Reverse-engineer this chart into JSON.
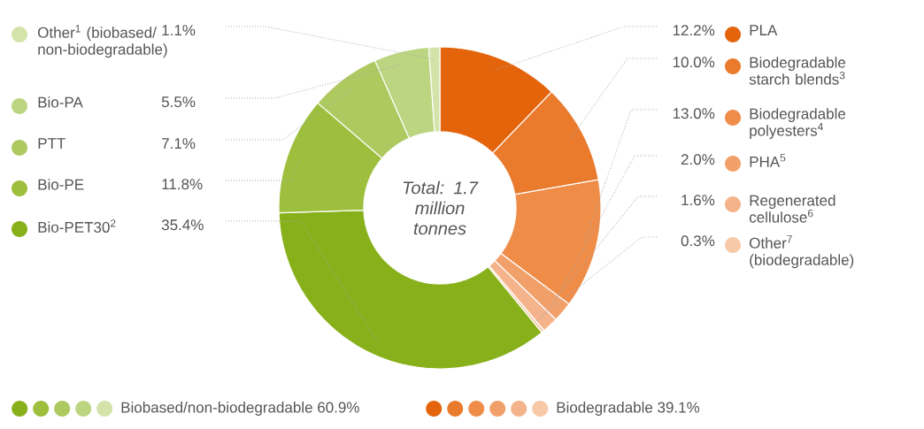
{
  "chart_data": {
    "type": "donut",
    "categories": [
      "PLA",
      "Biodegradable starch blends$^{3}$",
      "Biodegradable polyesters$^{4}$",
      "PHA$^{5}$",
      "Regenerated cellulose$^{6}$",
      "Other$^{7}$ (biodegradable)",
      "Bio-PET30$^{2}$",
      "Bio-PE",
      "PTT",
      "Bio-PA",
      "Other$^{1}$ (biobased/ non-biodegradable)"
    ],
    "values": [
      12.2,
      10.0,
      13.0,
      2.0,
      1.6,
      0.3,
      35.4,
      11.8,
      7.1,
      5.5,
      1.1
    ],
    "value_labels": [
      "12.2%",
      "10.0%",
      "13.0%",
      "2.0%",
      "1.6%",
      "0.3%",
      "35.4%",
      "11.8%",
      "7.1%",
      "5.5%",
      "1.1%"
    ],
    "colors": [
      "#e4640c",
      "#ea7a2c",
      "#ee8c48",
      "#f2a06a",
      "#f4b38a",
      "#f7c9a7",
      "#88b01a",
      "#9dbf3d",
      "#adc95f",
      "#bcd580",
      "#d3e3a9"
    ],
    "legend": "left",
    "annotations": [
      "Total: 1.7 million tonnes",
      "Biobased/non-biodegradable 60.9%",
      "Biodegradable 39.1%"
    ]
  }
}
